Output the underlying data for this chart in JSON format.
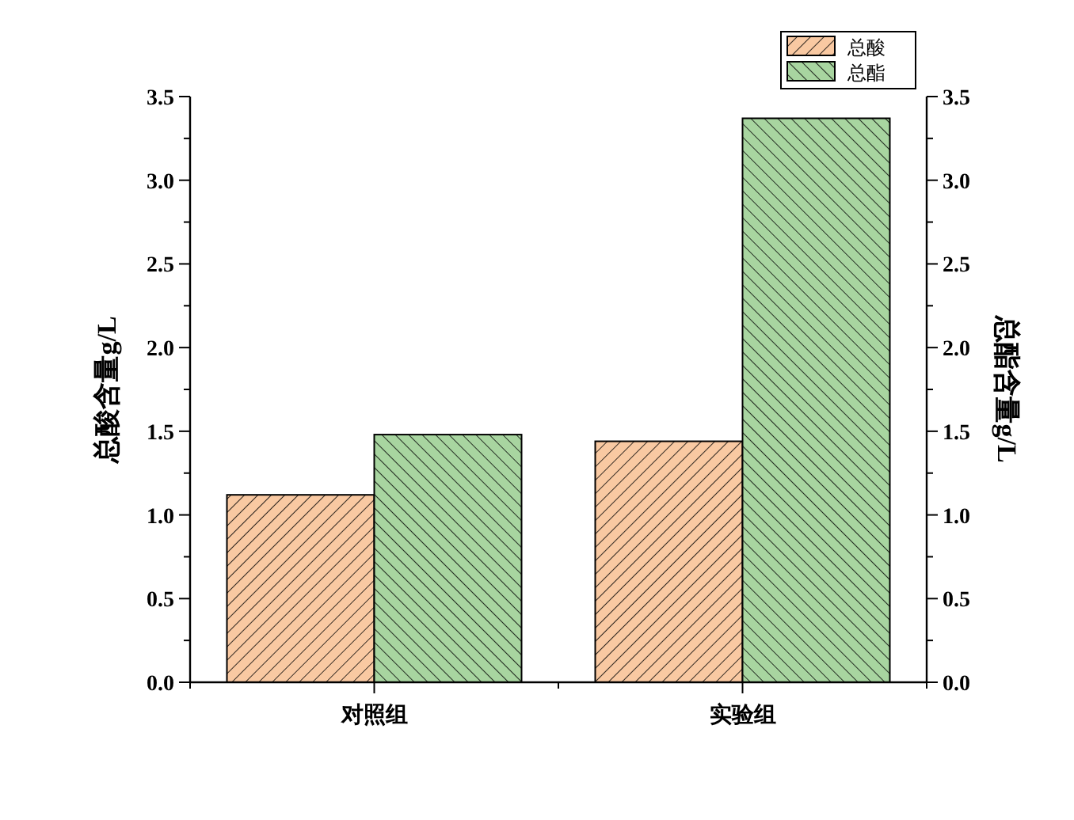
{
  "chart_data": {
    "type": "bar",
    "categories": [
      "对照组",
      "实验组"
    ],
    "series": [
      {
        "name": "总酸",
        "color": "#f9c9a2",
        "values": [
          1.12,
          1.44
        ]
      },
      {
        "name": "总酯",
        "color": "#a8d5a0",
        "values": [
          1.48,
          3.37
        ]
      }
    ],
    "ylabel": "总酸含量g/L",
    "y2label": "总酯含量g/L",
    "ylim": [
      0,
      3.5
    ],
    "y2lim": [
      0,
      3.5
    ],
    "yticks": [
      {
        "value": 0,
        "label": "0.0"
      },
      {
        "value": 0.25,
        "label": null
      },
      {
        "value": 0.5,
        "label": "0.5"
      },
      {
        "value": 0.75,
        "label": null
      },
      {
        "value": 1,
        "label": "1.0"
      },
      {
        "value": 1.25,
        "label": null
      },
      {
        "value": 1.5,
        "label": "1.5"
      },
      {
        "value": 1.75,
        "label": null
      },
      {
        "value": 2,
        "label": "2.0"
      },
      {
        "value": 2.25,
        "label": null
      },
      {
        "value": 2.5,
        "label": "2.5"
      },
      {
        "value": 2.75,
        "label": null
      },
      {
        "value": 3,
        "label": "3.0"
      },
      {
        "value": 3.25,
        "label": null
      },
      {
        "value": 3.5,
        "label": "3.5"
      }
    ],
    "y2ticks": [
      {
        "value": 0,
        "label": "0.0"
      },
      {
        "value": 0.25,
        "label": null
      },
      {
        "value": 0.5,
        "label": "0.5"
      },
      {
        "value": 0.75,
        "label": null
      },
      {
        "value": 1,
        "label": "1.0"
      },
      {
        "value": 1.25,
        "label": null
      },
      {
        "value": 1.5,
        "label": "1.5"
      },
      {
        "value": 1.75,
        "label": null
      },
      {
        "value": 2,
        "label": "2.0"
      },
      {
        "value": 2.25,
        "label": null
      },
      {
        "value": 2.5,
        "label": "2.5"
      },
      {
        "value": 2.75,
        "label": null
      },
      {
        "value": 3,
        "label": "3.0"
      },
      {
        "value": 3.25,
        "label": null
      },
      {
        "value": 3.5,
        "label": "3.5"
      }
    ],
    "legend": "top right"
  }
}
